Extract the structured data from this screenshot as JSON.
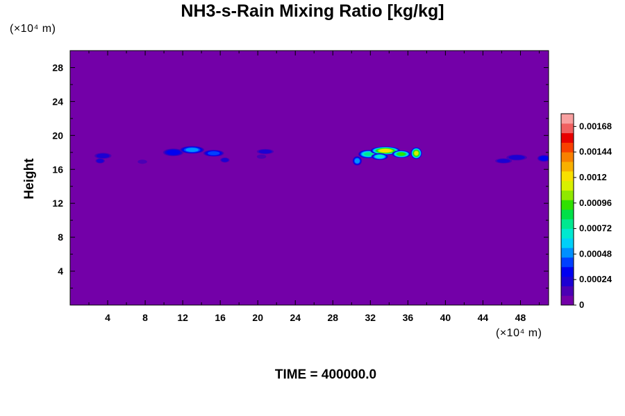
{
  "chart_data": {
    "type": "heatmap",
    "title": "NH3-s-Rain Mixing Ratio [kg/kg]",
    "ylabel": "Height",
    "xlabel": "",
    "x_unit": "(×10⁴ m)",
    "y_unit": "(×10⁴ m)",
    "xlim": [
      0,
      51
    ],
    "ylim": [
      0,
      30
    ],
    "x_ticks": [
      4,
      8,
      12,
      16,
      20,
      24,
      28,
      32,
      36,
      40,
      44,
      48
    ],
    "y_ticks": [
      4,
      8,
      12,
      16,
      20,
      24,
      28
    ],
    "background_color": "#7300a8",
    "colorbar": {
      "min": 0,
      "max": 0.0018,
      "labels": [
        "0",
        "0.00024",
        "0.00048",
        "0.00072",
        "0.00096",
        "0.0012",
        "0.00144",
        "0.00168"
      ],
      "label_values": [
        0,
        0.00024,
        0.00048,
        0.00072,
        0.00096,
        0.0012,
        0.00144,
        0.00168
      ],
      "colors": [
        "#7300a8",
        "#4b00b4",
        "#1c00d2",
        "#0000f0",
        "#0040ff",
        "#0090ff",
        "#00d0f8",
        "#00e8d0",
        "#00e890",
        "#00e048",
        "#30e000",
        "#90e800",
        "#d8f000",
        "#f8e000",
        "#f8b000",
        "#f88000",
        "#f84000",
        "#e80000",
        "#f06060",
        "#f8a0a0"
      ]
    },
    "features": [
      {
        "x": 3.5,
        "y": 17.6,
        "rx": 0.9,
        "ry": 0.35,
        "peak": 0.0002
      },
      {
        "x": 3.2,
        "y": 17.0,
        "rx": 0.5,
        "ry": 0.3,
        "peak": 0.0002
      },
      {
        "x": 7.7,
        "y": 16.9,
        "rx": 0.5,
        "ry": 0.25,
        "peak": 0.0001
      },
      {
        "x": 11.0,
        "y": 18.0,
        "rx": 1.1,
        "ry": 0.45,
        "peak": 0.00035
      },
      {
        "x": 13.0,
        "y": 18.3,
        "rx": 1.3,
        "ry": 0.45,
        "peak": 0.00045
      },
      {
        "x": 15.3,
        "y": 17.9,
        "rx": 1.1,
        "ry": 0.4,
        "peak": 0.0004
      },
      {
        "x": 16.5,
        "y": 17.1,
        "rx": 0.5,
        "ry": 0.3,
        "peak": 0.0002
      },
      {
        "x": 20.8,
        "y": 18.1,
        "rx": 0.9,
        "ry": 0.3,
        "peak": 0.0002
      },
      {
        "x": 20.4,
        "y": 17.5,
        "rx": 0.5,
        "ry": 0.25,
        "peak": 0.00015
      },
      {
        "x": 30.6,
        "y": 17.0,
        "rx": 0.5,
        "ry": 0.55,
        "peak": 0.00045
      },
      {
        "x": 31.8,
        "y": 17.8,
        "rx": 1.1,
        "ry": 0.5,
        "peak": 0.0008
      },
      {
        "x": 33.6,
        "y": 18.2,
        "rx": 1.6,
        "ry": 0.5,
        "peak": 0.0012
      },
      {
        "x": 33.0,
        "y": 17.5,
        "rx": 0.9,
        "ry": 0.4,
        "peak": 0.0007
      },
      {
        "x": 35.3,
        "y": 17.8,
        "rx": 1.0,
        "ry": 0.45,
        "peak": 0.0009
      },
      {
        "x": 36.9,
        "y": 17.9,
        "rx": 0.6,
        "ry": 0.7,
        "peak": 0.0011
      },
      {
        "x": 46.2,
        "y": 17.0,
        "rx": 0.9,
        "ry": 0.3,
        "peak": 0.0002
      },
      {
        "x": 47.6,
        "y": 17.4,
        "rx": 1.1,
        "ry": 0.35,
        "peak": 0.00025
      },
      {
        "x": 50.5,
        "y": 17.3,
        "rx": 0.7,
        "ry": 0.4,
        "peak": 0.00028
      }
    ],
    "time_label": "TIME = 400000.0"
  }
}
